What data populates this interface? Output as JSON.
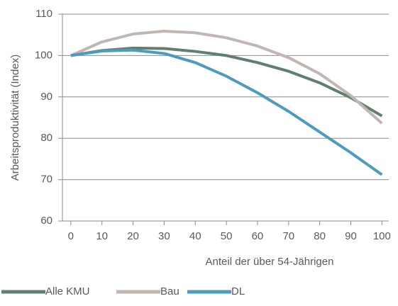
{
  "chart_data": {
    "type": "line",
    "x_label": "Anteil der über 54-Jährigen",
    "y_label": "Arbeitsproduktivität (Index)",
    "x": [
      0,
      10,
      20,
      30,
      40,
      50,
      60,
      70,
      80,
      90,
      100
    ],
    "series": [
      {
        "name": "Alle KMU",
        "color": "#5f7f70",
        "values": [
          100,
          101.2,
          101.8,
          101.7,
          101,
          100,
          98.3,
          96.2,
          93.4,
          89.8,
          85.4
        ]
      },
      {
        "name": "Bau",
        "color": "#c0b7b3",
        "values": [
          100,
          103.3,
          105.2,
          105.9,
          105.5,
          104.3,
          102.3,
          99.5,
          95.6,
          90.3,
          83.6
        ]
      },
      {
        "name": "DL",
        "color": "#4d9cc0",
        "values": [
          100,
          101.1,
          101.3,
          100.5,
          98.3,
          95,
          91,
          86.5,
          81.5,
          76.5,
          71.2
        ]
      }
    ],
    "xlim": [
      -2.7,
      102.2
    ],
    "xticks": [
      0,
      10,
      20,
      30,
      40,
      50,
      60,
      70,
      80,
      90,
      100
    ],
    "ylim": [
      60,
      110
    ],
    "yticks": [
      60,
      70,
      80,
      90,
      100,
      110
    ],
    "grid": true,
    "legend": "bottom"
  }
}
